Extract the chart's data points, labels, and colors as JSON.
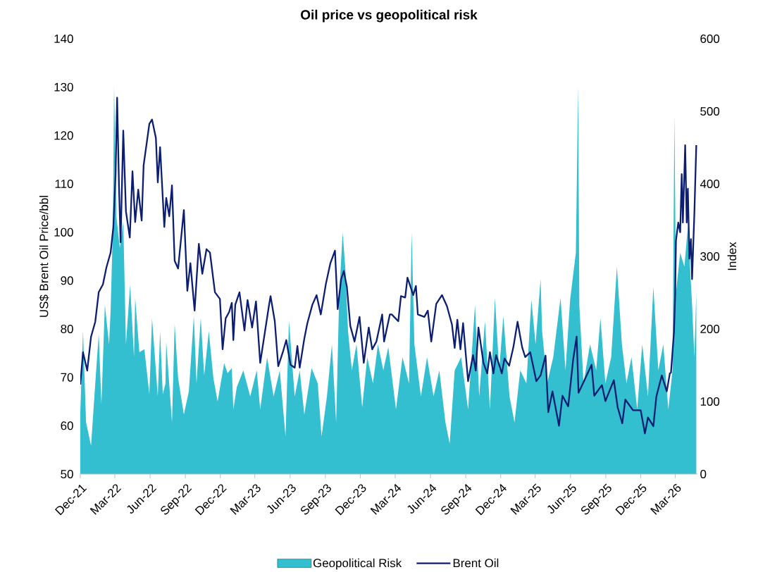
{
  "chart_data": {
    "type": "line",
    "title": "Oil price vs geopolitical risk",
    "ylabel": "US$ Brent Oil Price/bbl",
    "y2label": "Index",
    "marker": "none",
    "legend": "bottom",
    "xlim": [
      "2021-12-01",
      "2026-04-28"
    ],
    "xticks": [
      {
        "value": "2021-12-01",
        "label": "Dec-21"
      },
      {
        "value": "2022-03-01",
        "label": "Mar-22"
      },
      {
        "value": "2022-06-01",
        "label": "Jun-22"
      },
      {
        "value": "2022-09-01",
        "label": "Sep-22"
      },
      {
        "value": "2022-12-01",
        "label": "Dec-22"
      },
      {
        "value": "2023-03-01",
        "label": "Mar-23"
      },
      {
        "value": "2023-06-01",
        "label": "Jun-23"
      },
      {
        "value": "2023-09-01",
        "label": "Sep-23"
      },
      {
        "value": "2023-12-01",
        "label": "Dec-23"
      },
      {
        "value": "2024-03-01",
        "label": "Mar-24"
      },
      {
        "value": "2024-06-01",
        "label": "Jun-24"
      },
      {
        "value": "2024-09-01",
        "label": "Sep-24"
      },
      {
        "value": "2024-12-01",
        "label": "Dec-24"
      },
      {
        "value": "2025-03-01",
        "label": "Mar-25"
      },
      {
        "value": "2025-06-01",
        "label": "Jun-25"
      },
      {
        "value": "2025-09-01",
        "label": "Sep-25"
      },
      {
        "value": "2025-12-01",
        "label": "Dec-25"
      },
      {
        "value": "2026-03-01",
        "label": "Mar-26"
      }
    ],
    "ylim": [
      50,
      140
    ],
    "yticks": [
      50,
      60,
      70,
      80,
      90,
      100,
      110,
      120,
      130,
      140
    ],
    "y2lim": [
      0,
      600
    ],
    "y2ticks": [
      0,
      100,
      200,
      300,
      400,
      500,
      600
    ],
    "series": [
      {
        "name": "Geopolitical Risk",
        "type": "area",
        "axis": "y2",
        "color": "#33bfcf",
        "x": [
          "2021-12-01",
          "2021-12-08",
          "2021-12-16",
          "2021-12-29",
          "2022-01-09",
          "2022-01-18",
          "2022-01-25",
          "2022-02-03",
          "2022-02-14",
          "2022-02-18",
          "2022-02-24",
          "2022-02-27",
          "2022-03-05",
          "2022-03-14",
          "2022-03-23",
          "2022-03-30",
          "2022-04-10",
          "2022-04-20",
          "2022-04-23",
          "2022-05-04",
          "2022-05-17",
          "2022-05-30",
          "2022-06-06",
          "2022-06-21",
          "2022-06-27",
          "2022-07-04",
          "2022-07-11",
          "2022-07-13",
          "2022-07-28",
          "2022-08-04",
          "2022-08-13",
          "2022-08-28",
          "2022-09-10",
          "2022-09-23",
          "2022-09-30",
          "2022-10-11",
          "2022-10-20",
          "2022-11-01",
          "2022-11-13",
          "2022-11-24",
          "2022-12-11",
          "2022-12-20",
          "2022-12-31",
          "2023-01-04",
          "2023-01-13",
          "2023-01-30",
          "2023-02-17",
          "2023-03-06",
          "2023-03-15",
          "2023-04-02",
          "2023-04-19",
          "2023-05-05",
          "2023-05-20",
          "2023-05-29",
          "2023-06-13",
          "2023-06-26",
          "2023-07-08",
          "2023-07-27",
          "2023-08-12",
          "2023-08-22",
          "2023-09-05",
          "2023-09-18",
          "2023-09-29",
          "2023-10-07",
          "2023-10-16",
          "2023-10-23",
          "2023-10-30",
          "2023-11-09",
          "2023-11-21",
          "2023-12-06",
          "2023-12-19",
          "2024-01-03",
          "2024-01-16",
          "2024-01-30",
          "2024-02-12",
          "2024-03-03",
          "2024-03-20",
          "2024-04-06",
          "2024-04-13",
          "2024-04-20",
          "2024-05-07",
          "2024-05-23",
          "2024-06-09",
          "2024-06-24",
          "2024-07-10",
          "2024-07-21",
          "2024-08-03",
          "2024-08-20",
          "2024-09-07",
          "2024-09-25",
          "2024-10-06",
          "2024-10-21",
          "2024-11-03",
          "2024-11-16",
          "2024-11-27",
          "2024-12-08",
          "2024-12-24",
          "2025-01-06",
          "2025-01-21",
          "2025-02-06",
          "2025-02-19",
          "2025-03-02",
          "2025-03-15",
          "2025-03-19",
          "2025-04-01",
          "2025-04-17",
          "2025-05-06",
          "2025-05-19",
          "2025-05-31",
          "2025-06-15",
          "2025-06-21",
          "2025-06-24",
          "2025-07-05",
          "2025-07-22",
          "2025-08-07",
          "2025-08-18",
          "2025-08-31",
          "2025-09-15",
          "2025-09-30",
          "2025-10-13",
          "2025-10-25",
          "2025-11-07",
          "2025-11-22",
          "2025-12-05",
          "2025-12-20",
          "2026-01-03",
          "2026-01-16",
          "2026-01-29",
          "2026-02-11",
          "2026-02-22",
          "2026-02-27",
          "2026-03-03",
          "2026-03-14",
          "2026-03-25",
          "2026-04-03",
          "2026-04-14",
          "2026-04-20",
          "2026-04-25"
        ],
        "values": [
          85,
          197,
          71,
          39,
          125,
          193,
          96,
          233,
          179,
          225,
          341,
          535,
          355,
          312,
          348,
          179,
          261,
          161,
          243,
          168,
          172,
          110,
          215,
          107,
          197,
          110,
          125,
          182,
          71,
          207,
          132,
          82,
          114,
          218,
          125,
          215,
          136,
          197,
          132,
          100,
          153,
          139,
          146,
          89,
          120,
          143,
          107,
          143,
          89,
          161,
          107,
          143,
          52,
          211,
          107,
          143,
          82,
          146,
          125,
          52,
          107,
          179,
          71,
          247,
          333,
          283,
          197,
          143,
          179,
          92,
          161,
          125,
          179,
          143,
          175,
          89,
          161,
          125,
          333,
          179,
          107,
          161,
          107,
          143,
          71,
          42,
          143,
          161,
          89,
          233,
          107,
          211,
          89,
          243,
          143,
          218,
          107,
          71,
          143,
          125,
          240,
          179,
          269,
          197,
          125,
          161,
          243,
          143,
          240,
          305,
          535,
          233,
          125,
          179,
          143,
          215,
          125,
          161,
          286,
          179,
          125,
          161,
          89,
          179,
          107,
          258,
          143,
          179,
          89,
          143,
          495,
          250,
          305,
          286,
          341,
          233,
          161,
          250
        ]
      },
      {
        "name": "Brent Oil",
        "axis": "y",
        "color": "#0b1e72",
        "x": [
          "2021-12-01",
          "2021-12-08",
          "2021-12-19",
          "2021-12-29",
          "2022-01-09",
          "2022-01-18",
          "2022-01-29",
          "2022-02-07",
          "2022-02-18",
          "2022-02-25",
          "2022-03-03",
          "2022-03-07",
          "2022-03-12",
          "2022-03-16",
          "2022-03-23",
          "2022-03-30",
          "2022-04-09",
          "2022-04-16",
          "2022-04-23",
          "2022-05-01",
          "2022-05-10",
          "2022-05-15",
          "2022-05-30",
          "2022-06-06",
          "2022-06-16",
          "2022-06-21",
          "2022-06-27",
          "2022-07-08",
          "2022-07-13",
          "2022-07-21",
          "2022-07-28",
          "2022-08-04",
          "2022-08-13",
          "2022-08-28",
          "2022-09-06",
          "2022-09-14",
          "2022-09-25",
          "2022-10-06",
          "2022-10-15",
          "2022-10-26",
          "2022-11-04",
          "2022-11-17",
          "2022-11-30",
          "2022-12-07",
          "2022-12-15",
          "2022-12-24",
          "2022-12-31",
          "2023-01-04",
          "2023-01-09",
          "2023-01-20",
          "2023-02-02",
          "2023-02-10",
          "2023-02-22",
          "2023-03-04",
          "2023-03-15",
          "2023-04-06",
          "2023-04-11",
          "2023-04-22",
          "2023-05-01",
          "2023-05-13",
          "2023-05-22",
          "2023-06-02",
          "2023-06-13",
          "2023-06-20",
          "2023-06-26",
          "2023-07-08",
          "2023-07-16",
          "2023-07-29",
          "2023-08-09",
          "2023-08-20",
          "2023-09-02",
          "2023-09-14",
          "2023-09-26",
          "2023-10-03",
          "2023-10-12",
          "2023-10-19",
          "2023-10-27",
          "2023-11-05",
          "2023-11-16",
          "2023-11-29",
          "2023-12-10",
          "2023-12-23",
          "2024-01-01",
          "2024-01-12",
          "2024-01-27",
          "2024-02-01",
          "2024-02-16",
          "2024-02-21",
          "2024-03-09",
          "2024-03-16",
          "2024-03-27",
          "2024-04-02",
          "2024-04-17",
          "2024-04-24",
          "2024-04-29",
          "2024-05-16",
          "2024-05-25",
          "2024-06-03",
          "2024-06-16",
          "2024-07-01",
          "2024-07-14",
          "2024-07-27",
          "2024-08-03",
          "2024-08-10",
          "2024-08-18",
          "2024-08-25",
          "2024-09-07",
          "2024-09-20",
          "2024-09-27",
          "2024-10-04",
          "2024-10-17",
          "2024-10-27",
          "2024-11-03",
          "2024-11-12",
          "2024-11-19",
          "2024-12-04",
          "2024-12-11",
          "2024-12-23",
          "2025-01-03",
          "2025-01-14",
          "2025-01-26",
          "2025-02-03",
          "2025-02-16",
          "2025-03-04",
          "2025-03-15",
          "2025-03-28",
          "2025-04-04",
          "2025-04-15",
          "2025-05-02",
          "2025-05-11",
          "2025-05-26",
          "2025-06-08",
          "2025-06-17",
          "2025-06-22",
          "2025-07-09",
          "2025-07-26",
          "2025-08-02",
          "2025-08-22",
          "2025-08-31",
          "2025-09-22",
          "2025-10-02",
          "2025-10-14",
          "2025-10-22",
          "2025-11-11",
          "2025-12-01",
          "2025-12-12",
          "2025-12-20",
          "2026-01-03",
          "2026-01-11",
          "2026-01-25",
          "2026-02-07",
          "2026-02-15",
          "2026-02-18",
          "2026-02-26",
          "2026-03-01",
          "2026-03-03",
          "2026-03-09",
          "2026-03-14",
          "2026-03-18",
          "2026-03-21",
          "2026-03-25",
          "2026-03-27",
          "2026-03-31",
          "2026-04-03",
          "2026-04-07",
          "2026-04-11",
          "2026-04-14",
          "2026-04-20",
          "2026-04-25"
        ],
        "values": [
          68.5,
          75.2,
          71.4,
          78.4,
          81.5,
          87.6,
          89.2,
          92.7,
          95.8,
          101,
          111.9,
          127.8,
          109.1,
          97.9,
          121,
          104.3,
          98.9,
          112.6,
          102.1,
          108.8,
          102.4,
          113.8,
          122.4,
          123.3,
          119.5,
          110.3,
          117.6,
          101.1,
          107.1,
          103.3,
          109.7,
          94.1,
          92.5,
          104.6,
          87.9,
          93.6,
          83.8,
          97.6,
          91.4,
          96.5,
          95.8,
          87.6,
          86.2,
          75.8,
          82.2,
          83.5,
          85.4,
          77.7,
          85,
          87.6,
          79.7,
          86,
          80.3,
          85.7,
          73,
          84.4,
          86.8,
          81.6,
          72.3,
          75.2,
          77.7,
          72.6,
          72,
          76.5,
          72,
          78,
          81.2,
          85,
          87,
          83,
          89.2,
          93.6,
          96.2,
          84.1,
          90.3,
          92,
          88.7,
          80.6,
          77.4,
          82.5,
          73,
          80.3,
          75.8,
          77.4,
          83,
          77.4,
          83,
          83,
          81.6,
          86.8,
          86.5,
          90.6,
          87,
          88.9,
          83,
          82.5,
          83.8,
          77.4,
          85.2,
          87,
          84.7,
          80.9,
          76.1,
          81.9,
          75.8,
          81.2,
          69.2,
          74.6,
          71.4,
          80.3,
          73,
          70.8,
          75.2,
          70.8,
          74.6,
          70.8,
          73.9,
          72.4,
          76.2,
          81.5,
          76.2,
          74.2,
          75.2,
          69.2,
          70.4,
          74.5,
          62.8,
          67.1,
          60,
          66.2,
          64,
          73.7,
          78.4,
          66.8,
          69.7,
          72.6,
          66.2,
          68.4,
          65.1,
          69.4,
          63.8,
          60.5,
          65.4,
          63.2,
          63.2,
          58.4,
          61.7,
          59.9,
          66.1,
          70.4,
          67.1,
          70.8,
          71,
          79.6,
          87.6,
          98.3,
          102,
          100,
          112,
          102,
          112.6,
          118,
          102,
          109,
          94.5,
          98.6,
          90.3,
          104,
          118
        ]
      }
    ]
  }
}
